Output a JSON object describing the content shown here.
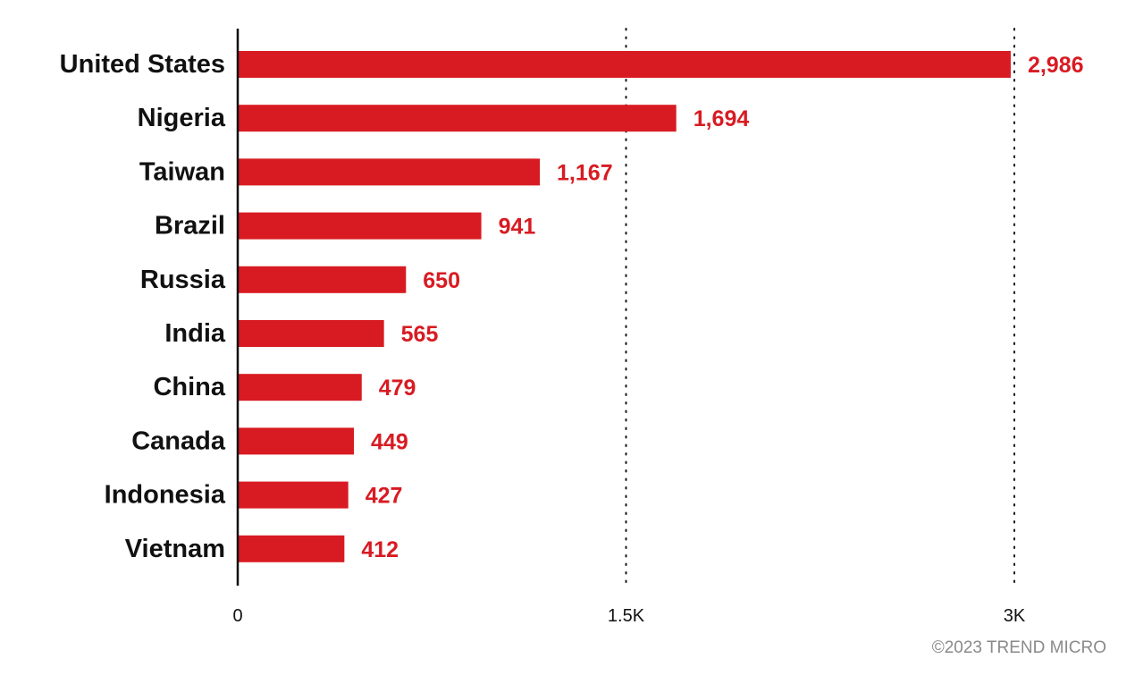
{
  "chart_data": {
    "type": "bar",
    "orientation": "horizontal",
    "categories": [
      "United States",
      "Nigeria",
      "Taiwan",
      "Brazil",
      "Russia",
      "India",
      "China",
      "Canada",
      "Indonesia",
      "Vietnam"
    ],
    "values": [
      2986,
      1694,
      1167,
      941,
      650,
      565,
      479,
      449,
      427,
      412
    ],
    "value_labels": [
      "2,986",
      "1,694",
      "1,167",
      "941",
      "650",
      "565",
      "479",
      "449",
      "427",
      "412"
    ],
    "xlim": [
      0,
      3000
    ],
    "xticks": [
      0,
      1500,
      3000
    ],
    "xtick_labels": [
      "0",
      "1.5K",
      "3K"
    ],
    "grid": "dotted vertical lines at 1.5K and 3K",
    "title": "",
    "xlabel": "",
    "ylabel": "",
    "bar_color": "#d81b22",
    "label_color": "#d81b22"
  },
  "credit": "©2023 TREND MICRO"
}
